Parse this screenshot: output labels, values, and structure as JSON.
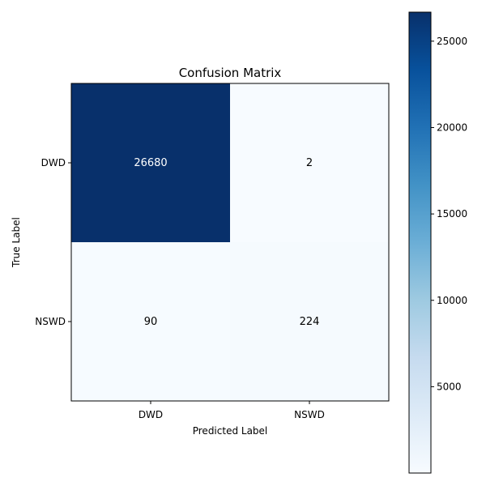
{
  "chart_data": {
    "type": "heatmap",
    "title": "Confusion Matrix",
    "xlabel": "Predicted Label",
    "ylabel": "True Label",
    "x_categories": [
      "DWD",
      "NSWD"
    ],
    "y_categories": [
      "DWD",
      "NSWD"
    ],
    "matrix": [
      [
        26680,
        2
      ],
      [
        90,
        224
      ]
    ],
    "colormap": "Blues",
    "colorbar": {
      "min": 2,
      "max": 26680,
      "ticks": [
        5000,
        10000,
        15000,
        20000,
        25000
      ]
    },
    "grid": false
  }
}
